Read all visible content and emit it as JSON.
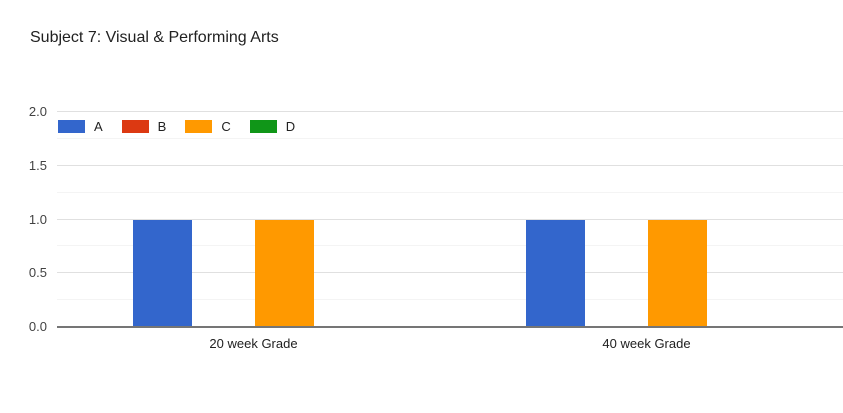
{
  "header": {
    "title": "Subject 7: Visual & Performing Arts"
  },
  "chart_data": {
    "type": "bar",
    "title": "Subject 7: Visual & Performing Arts",
    "categories": [
      "20 week Grade",
      "40 week Grade"
    ],
    "series": [
      {
        "name": "A",
        "color": "#3366cc",
        "values": [
          1,
          1
        ]
      },
      {
        "name": "B",
        "color": "#dc3912",
        "values": [
          0,
          0
        ]
      },
      {
        "name": "C",
        "color": "#ff9900",
        "values": [
          1,
          1
        ]
      },
      {
        "name": "D",
        "color": "#109618",
        "values": [
          0,
          0
        ]
      }
    ],
    "xlabel": "",
    "ylabel": "",
    "ylim": [
      0,
      2
    ],
    "y_major_ticks": [
      0,
      0.5,
      1,
      1.5,
      2
    ],
    "y_tick_labels": [
      "0.0",
      "0.5",
      "1.0",
      "1.5",
      "2.0"
    ],
    "y_minor_step": 0.25,
    "grid": true,
    "legend_position": "top-left"
  },
  "style": {
    "background": "#ffffff",
    "axis_line_color": "#757575",
    "major_grid_color": "#e0e0e0",
    "minor_grid_color": "#f4f4f4",
    "title_color": "#212121",
    "tick_label_color": "#424242"
  }
}
